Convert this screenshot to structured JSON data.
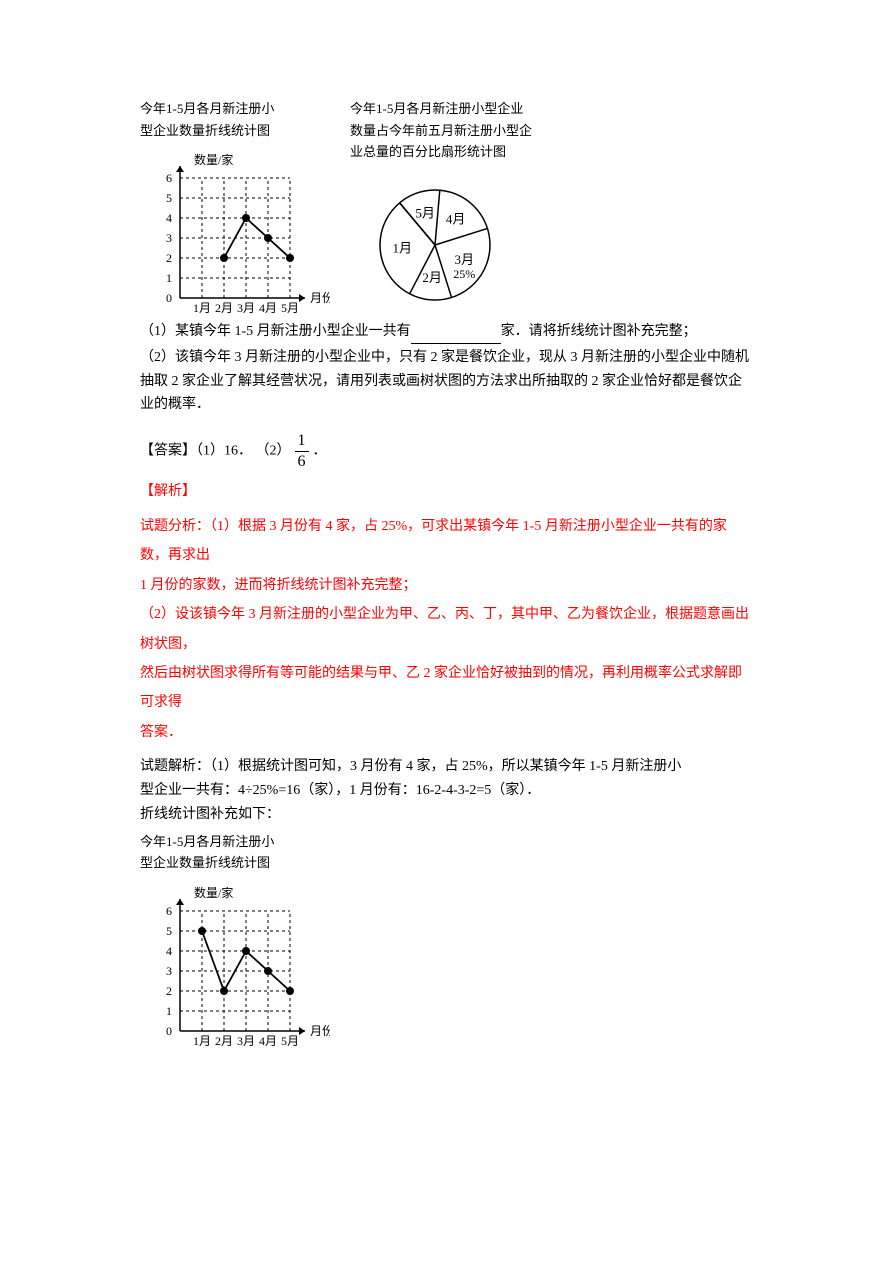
{
  "chart1": {
    "title1": "今年1-5月各月新注册小",
    "title2": "型企业数量折线统计图",
    "yaxis_label": "数量/家",
    "xaxis_label": "月份",
    "xticks": [
      "1月",
      "2月",
      "3月",
      "4月",
      "5月"
    ],
    "yticks": [
      "0",
      "1",
      "2",
      "3",
      "4",
      "5",
      "6"
    ],
    "points_x": [
      1,
      2,
      3,
      4
    ],
    "values": [
      2,
      4,
      3,
      2
    ],
    "xrange": 5,
    "ymax": 6,
    "line_color": "#000000",
    "marker_color": "#000000",
    "grid_color": "#000000"
  },
  "pie": {
    "title1": "今年1-5月各月新注册小型企业",
    "title2": "数量占今年前五月新注册小型企",
    "title3": "业总量的百分比扇形统计图",
    "slices": [
      {
        "label": "1月",
        "value": 5
      },
      {
        "label": "2月",
        "value": 2
      },
      {
        "label": "3月",
        "value": 4,
        "pct": "25%"
      },
      {
        "label": "4月",
        "value": 3
      },
      {
        "label": "5月",
        "value": 2
      }
    ],
    "start_angle": 130,
    "stroke_color": "#000000",
    "fill_color": "#ffffff"
  },
  "problems": {
    "q1": "（1）某镇今年 1-5 月新注册小型企业一共有",
    "q1_tail": "家．请将折线统计图补充完整；",
    "q2": "（2）该镇今年 3 月新注册的小型企业中，只有 2 家是餐饮企业，现从 3 月新注册的小型企业中随机抽取 2 家企业了解其经营状况，请用列表或画树状图的方法求出所抽取的 2 家企业恰好都是餐饮企业的概率．"
  },
  "answer": {
    "label": "【答案】",
    "a1": "（1）16．",
    "a2_prefix": "（2）",
    "frac_num": "1",
    "frac_den": "6",
    "a2_suffix": "．"
  },
  "analysis": {
    "title": "【解析】",
    "line0": "试题分析：（1）根据 3 月份有 4 家，占 25%，可求出某镇今年 1-5 月新注册小型企业一共有的家数，再求出",
    "line0b": "1 月份的家数，进而将折线统计图补充完整；",
    "line1": "（2）设该镇今年 3 月新注册的小型企业为甲、乙、丙、丁，其中甲、乙为餐饮企业，根据题意画出树状图，",
    "line2": "然后由树状图求得所有等可能的结果与甲、乙 2 家企业恰好被抽到的情况，再利用概率公式求解即可求得",
    "line3": "答案．"
  },
  "solution": {
    "line1": "试题解析：（1）根据统计图可知，3 月份有 4 家，占 25%，所以某镇今年 1-5 月新注册小",
    "line2": "型企业一共有：4÷25%=16（家），1 月份有：16-2-4-3-2=5（家）．",
    "line3": "折线统计图补充如下："
  },
  "chart2": {
    "title1": "今年1-5月各月新注册小",
    "title2": "型企业数量折线统计图",
    "yaxis_label": "数量/家",
    "xaxis_label": "月份",
    "xticks": [
      "1月",
      "2月",
      "3月",
      "4月",
      "5月"
    ],
    "yticks": [
      "0",
      "1",
      "2",
      "3",
      "4",
      "5",
      "6"
    ],
    "values": [
      5,
      2,
      4,
      3,
      2
    ],
    "xrange": 5,
    "ymax": 6
  }
}
